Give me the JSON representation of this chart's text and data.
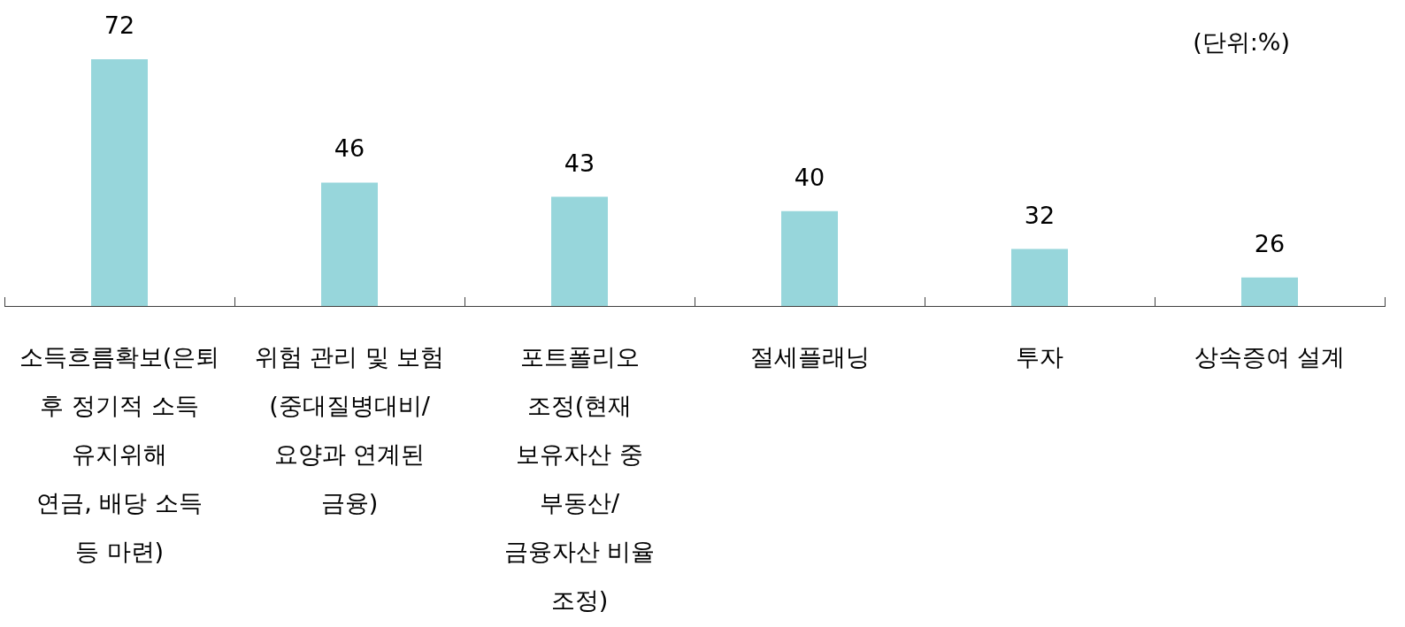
{
  "chart_data": {
    "type": "bar",
    "categories": [
      "소득흐름확보(은퇴\n후 정기적 소득\n유지위해\n연금, 배당 소득\n등 마련)",
      "위험 관리 및 보험\n(중대질병대비/\n요양과 연계된\n금융)",
      "포트폴리오\n조정(현재\n보유자산 중\n부동산/\n금융자산 비율\n조정)",
      "절세플래닝",
      "투자",
      "상속증여 설계"
    ],
    "values": [
      72,
      46,
      43,
      40,
      32,
      26
    ],
    "color": "#97d6db",
    "data_labels": true,
    "tick_labels": "x",
    "annotations": [
      "(단위:%)"
    ]
  }
}
